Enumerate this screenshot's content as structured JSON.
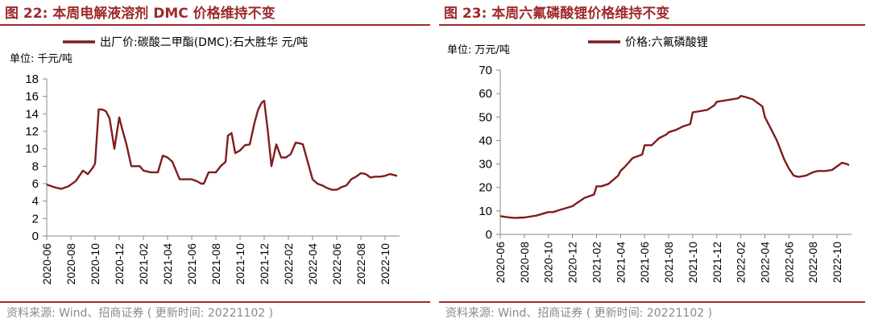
{
  "left": {
    "title": "图 22:  本周电解液溶剂 DMC 价格维持不变",
    "source": "资料来源:  Wind、招商证券 ( 更新时间:  20221102 )",
    "chart_data": {
      "type": "line",
      "title": "",
      "unit_label": "单位:  千元/吨",
      "legend": "出厂价:碳酸二甲酯(DMC):石大胜华 元/吨",
      "ylim": [
        0,
        18
      ],
      "yticks": [
        0,
        2,
        4,
        6,
        8,
        10,
        12,
        14,
        16,
        18
      ],
      "xticks": [
        "2020-06",
        "2020-08",
        "2020-10",
        "2020-12",
        "2021-02",
        "2021-04",
        "2021-06",
        "2021-08",
        "2021-10",
        "2021-12",
        "2022-02",
        "2022-04",
        "2022-06",
        "2022-08",
        "2022-10"
      ],
      "color": "#7f1d1d",
      "series": [
        {
          "name": "出厂价:碳酸二甲酯(DMC):石大胜华 元/吨",
          "x": [
            0,
            0.3,
            0.6,
            0.9,
            1.2,
            1.5,
            1.7,
            1.9,
            2.0,
            2.15,
            2.3,
            2.45,
            2.6,
            2.8,
            3.0,
            3.1,
            3.3,
            3.5,
            3.7,
            3.85,
            4.0,
            4.15,
            4.3,
            4.45,
            4.6,
            4.8,
            5.0,
            5.2,
            5.5,
            5.8,
            6.0,
            6.2,
            6.4,
            6.5,
            6.7,
            6.9,
            7.0,
            7.2,
            7.4,
            7.5,
            7.65,
            7.8,
            8.0,
            8.2,
            8.4,
            8.6,
            8.75,
            8.9,
            9.0,
            9.15,
            9.3,
            9.5,
            9.7,
            9.9,
            10.1,
            10.3,
            10.5,
            10.6,
            10.8,
            11.0,
            11.2,
            11.4,
            11.6,
            11.8,
            12.0,
            12.2,
            12.4,
            12.6,
            12.8,
            13.0,
            13.2,
            13.4,
            13.6,
            13.8,
            14.0,
            14.2,
            14.35,
            14.5
          ],
          "values": [
            5.9,
            5.6,
            5.4,
            5.7,
            6.3,
            7.5,
            7.1,
            7.8,
            8.3,
            14.5,
            14.5,
            14.3,
            13.5,
            10.0,
            13.6,
            12.5,
            10.5,
            8.0,
            8.0,
            8.0,
            7.5,
            7.4,
            7.3,
            7.3,
            7.3,
            9.2,
            9.0,
            8.5,
            6.5,
            6.5,
            6.5,
            6.3,
            6.0,
            6.0,
            7.3,
            7.3,
            7.3,
            8.0,
            8.5,
            11.5,
            11.8,
            9.5,
            9.8,
            10.4,
            10.5,
            13.0,
            14.5,
            15.3,
            15.5,
            12.0,
            8.0,
            10.5,
            9.0,
            9.0,
            9.4,
            10.7,
            10.6,
            10.5,
            8.5,
            6.5,
            6.0,
            5.8,
            5.5,
            5.3,
            5.3,
            5.6,
            5.8,
            6.5,
            6.8,
            7.2,
            7.1,
            6.7,
            6.8,
            6.8,
            6.9,
            7.1,
            7.0,
            6.9
          ]
        }
      ]
    }
  },
  "right": {
    "title": "图 23:  本周六氟磷酸锂价格维持不变",
    "source": "资料来源:  Wind、招商证券 ( 更新时间:  20221102 )",
    "chart_data": {
      "type": "line",
      "title": "",
      "unit_label": "单位:  万元/吨",
      "legend": "价格:六氟磷酸锂",
      "ylim": [
        0,
        70
      ],
      "yticks": [
        0,
        10,
        20,
        30,
        40,
        50,
        60,
        70
      ],
      "xticks": [
        "2020-06",
        "2020-08",
        "2020-10",
        "2020-12",
        "2021-02",
        "2021-04",
        "2021-06",
        "2021-08",
        "2021-10",
        "2021-12",
        "2022-02",
        "2022-04",
        "2022-06",
        "2022-08",
        "2022-10"
      ],
      "color": "#7f1d1d",
      "series": [
        {
          "name": "价格:六氟磷酸锂",
          "x": [
            0,
            0.3,
            0.6,
            1.0,
            1.5,
            2.0,
            2.2,
            2.5,
            3.0,
            3.2,
            3.5,
            3.9,
            4.0,
            4.2,
            4.5,
            4.9,
            5.0,
            5.2,
            5.5,
            5.9,
            6.0,
            6.3,
            6.6,
            6.9,
            7.0,
            7.3,
            7.6,
            7.9,
            8.0,
            8.3,
            8.6,
            8.9,
            9.0,
            9.3,
            9.6,
            9.9,
            10.0,
            10.2,
            10.5,
            10.7,
            10.9,
            11.0,
            11.2,
            11.5,
            11.8,
            12.0,
            12.2,
            12.4,
            12.7,
            13.0,
            13.2,
            13.5,
            13.8,
            14.0,
            14.2,
            14.4,
            14.5
          ],
          "values": [
            7.8,
            7.3,
            7.0,
            7.2,
            8.0,
            9.5,
            9.5,
            10.5,
            12.0,
            13.5,
            15.5,
            17.0,
            20.5,
            20.5,
            21.5,
            25.0,
            27.0,
            29.0,
            32.5,
            34.0,
            38.0,
            38.0,
            41.0,
            42.5,
            43.5,
            44.5,
            46.0,
            47.0,
            52.0,
            52.5,
            53.0,
            55.0,
            56.5,
            57.0,
            57.5,
            58.0,
            59.0,
            58.5,
            57.5,
            56.0,
            54.5,
            50.0,
            46.0,
            40.0,
            32.0,
            28.0,
            25.0,
            24.5,
            25.0,
            26.5,
            27.0,
            27.0,
            27.5,
            29.0,
            30.5,
            30.0,
            29.5
          ]
        }
      ]
    }
  }
}
